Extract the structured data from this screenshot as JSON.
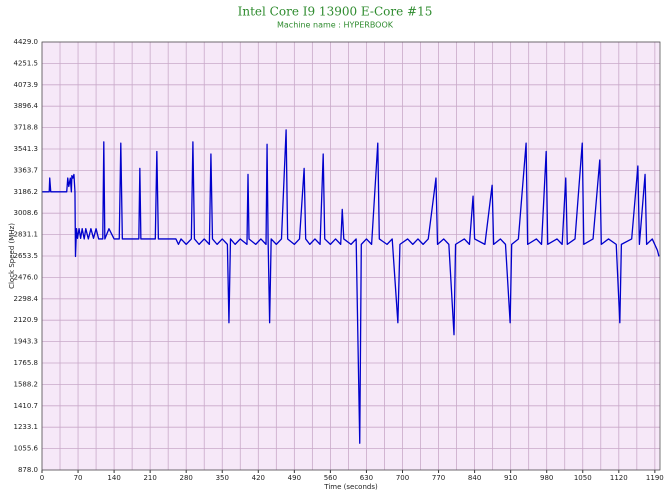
{
  "chart_data": {
    "type": "line",
    "title": "Intel Core I9 13900 E-Core #15",
    "subtitle": "Machine name : HYPERBOOK",
    "x_label": "Time (seconds)",
    "y_label": "Clock Speed (MHz)",
    "color": "#0000cc",
    "grid": true,
    "xlim": [
      0,
      1200
    ],
    "xticks": [
      0,
      70,
      140,
      210,
      280,
      350,
      420,
      490,
      560,
      630,
      700,
      770,
      840,
      910,
      980,
      1050,
      1120,
      1190
    ],
    "ylim": [
      878,
      4429
    ],
    "yticks": [
      {
        "value": 878,
        "label": "878.0"
      },
      1055.6,
      1233.1,
      1410.7,
      1588.2,
      1765.8,
      1943.3,
      2120.9,
      2298.4,
      {
        "value": 2476,
        "label": "2476.0"
      },
      2653.5,
      2831.1,
      3008.6,
      3186.2,
      3363.7,
      3541.3,
      3718.8,
      3896.4,
      4073.9,
      4251.5,
      {
        "value": 4429,
        "label": "4429.0"
      }
    ],
    "x": [
      0,
      5,
      10,
      14,
      15,
      17,
      25,
      35,
      45,
      48,
      50,
      52,
      55,
      57,
      58,
      60,
      62,
      64,
      65,
      67,
      69,
      72,
      75,
      78,
      82,
      85,
      90,
      95,
      100,
      105,
      110,
      118,
      120,
      122,
      130,
      140,
      150,
      153,
      156,
      170,
      188,
      190,
      192,
      210,
      220,
      223,
      226,
      240,
      260,
      265,
      270,
      280,
      290,
      293,
      296,
      305,
      315,
      325,
      328,
      331,
      340,
      350,
      360,
      363,
      366,
      375,
      385,
      398,
      400,
      402,
      415,
      425,
      435,
      437,
      439,
      442,
      445,
      455,
      465,
      474,
      477,
      490,
      500,
      509,
      512,
      520,
      530,
      540,
      546,
      549,
      560,
      570,
      580,
      583,
      586,
      600,
      610,
      617,
      620,
      630,
      640,
      652,
      655,
      670,
      680,
      691,
      695,
      710,
      720,
      730,
      740,
      750,
      765,
      768,
      780,
      790,
      800,
      803,
      820,
      830,
      837,
      840,
      860,
      874,
      877,
      890,
      900,
      909,
      912,
      925,
      940,
      943,
      960,
      970,
      979,
      982,
      1000,
      1010,
      1017,
      1020,
      1035,
      1049,
      1052,
      1070,
      1083,
      1086,
      1100,
      1115,
      1122,
      1125,
      1145,
      1157,
      1160,
      1171,
      1174,
      1185,
      1195,
      1198
    ],
    "values": [
      3186,
      3186,
      3186,
      3186,
      3300,
      3186,
      3186,
      3186,
      3186,
      3186,
      3300,
      3230,
      3300,
      3186,
      3320,
      3300,
      3330,
      3186,
      2650,
      2880,
      2800,
      2880,
      2800,
      2880,
      2795,
      2880,
      2795,
      2880,
      2800,
      2880,
      2795,
      2795,
      3600,
      2795,
      2880,
      2795,
      2795,
      3590,
      2795,
      2795,
      2795,
      3380,
      2795,
      2795,
      2795,
      3520,
      2795,
      2795,
      2795,
      2750,
      2795,
      2750,
      2795,
      3600,
      2795,
      2750,
      2795,
      2750,
      3500,
      2795,
      2750,
      2795,
      2750,
      2100,
      2795,
      2750,
      2795,
      2750,
      3330,
      2795,
      2750,
      2795,
      2750,
      3580,
      2795,
      2100,
      2795,
      2750,
      2795,
      3700,
      2795,
      2750,
      2795,
      3380,
      2795,
      2750,
      2795,
      2750,
      3500,
      2795,
      2750,
      2795,
      2750,
      3040,
      2795,
      2750,
      2795,
      1100,
      2750,
      2795,
      2750,
      3590,
      2795,
      2750,
      2795,
      2100,
      2750,
      2795,
      2750,
      2795,
      2750,
      2795,
      3300,
      2750,
      2795,
      2750,
      2000,
      2750,
      2795,
      2750,
      3150,
      2795,
      2750,
      3240,
      2750,
      2795,
      2750,
      2100,
      2750,
      2795,
      3590,
      2750,
      2795,
      2750,
      3520,
      2750,
      2795,
      2750,
      3300,
      2750,
      2795,
      3590,
      2750,
      2795,
      3450,
      2750,
      2795,
      2750,
      2100,
      2750,
      2795,
      3400,
      2750,
      3330,
      2750,
      2795,
      2700,
      2650
    ]
  }
}
